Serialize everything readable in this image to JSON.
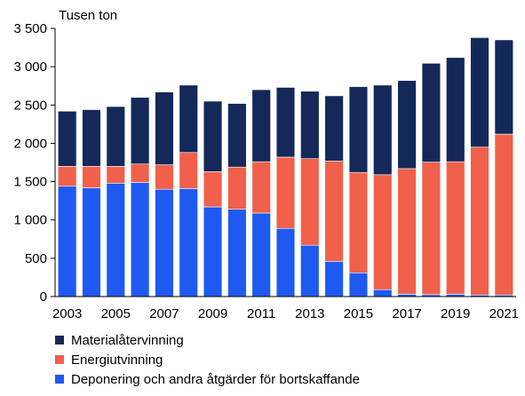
{
  "chart_data": {
    "type": "bar",
    "stacked": true,
    "unit_label": "Tusen ton",
    "categories": [
      "2003",
      "2004",
      "2005",
      "2006",
      "2007",
      "2008",
      "2009",
      "2010",
      "2011",
      "2012",
      "2013",
      "2014",
      "2015",
      "2016",
      "2017",
      "2018",
      "2019",
      "2020",
      "2021"
    ],
    "x_tick_labels": [
      "2003",
      "2005",
      "2007",
      "2009",
      "2011",
      "2013",
      "2015",
      "2017",
      "2019",
      "2021"
    ],
    "ylim": [
      0,
      3500
    ],
    "y_ticks": [
      0,
      500,
      1000,
      1500,
      2000,
      2500,
      3000,
      3500
    ],
    "y_tick_labels": [
      "0",
      "500",
      "1 000",
      "1 500",
      "2 000",
      "2 500",
      "3 000",
      "3 500"
    ],
    "grid": false,
    "legend_position": "bottom-left",
    "series": [
      {
        "name": "Deponering och andra åtgärder för bortskaffande",
        "color": "#1f5af0",
        "values": [
          1440,
          1420,
          1480,
          1490,
          1400,
          1410,
          1170,
          1140,
          1090,
          890,
          670,
          460,
          310,
          90,
          30,
          25,
          30,
          20,
          20
        ]
      },
      {
        "name": "Energiutvinning",
        "color": "#f0604a",
        "values": [
          260,
          280,
          220,
          240,
          320,
          470,
          460,
          550,
          670,
          930,
          1130,
          1310,
          1310,
          1500,
          1640,
          1730,
          1730,
          1930,
          2100
        ]
      },
      {
        "name": "Materialåtervinning",
        "color": "#14285a",
        "values": [
          720,
          740,
          780,
          870,
          950,
          880,
          920,
          830,
          940,
          910,
          880,
          850,
          1120,
          1170,
          1150,
          1290,
          1360,
          1430,
          1230
        ]
      }
    ]
  },
  "legend_order": [
    2,
    1,
    0
  ]
}
